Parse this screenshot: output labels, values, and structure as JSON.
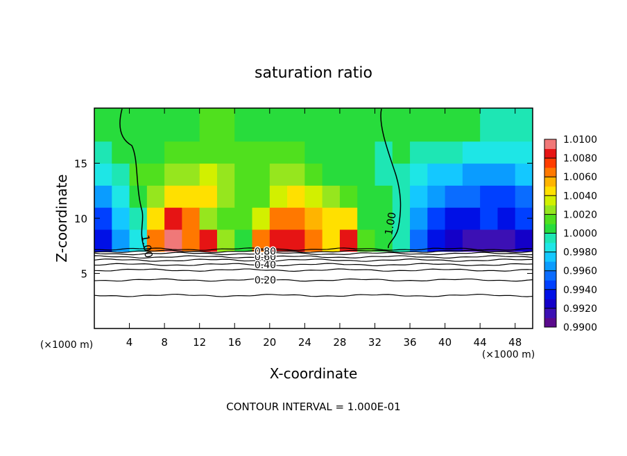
{
  "chart_data": {
    "type": "contour",
    "title": "saturation ratio",
    "x_label": "X-coordinate",
    "y_label": "Z-coordinate",
    "x_unit": "(×1000 m)",
    "y_unit": "(×1000 m)",
    "footer": "CONTOUR INTERVAL = 1.000E-01",
    "xlim": [
      0,
      50
    ],
    "ylim": [
      0,
      20
    ],
    "xticks": [
      4,
      8,
      12,
      16,
      20,
      24,
      28,
      32,
      36,
      40,
      44,
      48
    ],
    "yticks": [
      5,
      10,
      15
    ],
    "x": [
      1,
      3,
      5,
      7,
      9,
      11,
      13,
      15,
      17,
      19,
      21,
      23,
      25,
      27,
      29,
      31,
      33,
      35,
      37,
      39,
      41,
      43,
      45,
      47,
      49
    ],
    "y": [
      8,
      10,
      12,
      14,
      16,
      18
    ],
    "z": [
      [
        0.993,
        0.996,
        0.998,
        1.006,
        1.01,
        1.006,
        1.008,
        1.002,
        1.0,
        1.006,
        1.008,
        1.008,
        1.006,
        1.004,
        1.008,
        1.001,
        1.0,
        0.999,
        0.995,
        0.993,
        0.992,
        0.991,
        0.991,
        0.991,
        0.992
      ],
      [
        0.994,
        0.997,
        0.999,
        1.004,
        1.008,
        1.006,
        1.002,
        1.001,
        1.001,
        1.003,
        1.006,
        1.006,
        1.005,
        1.004,
        1.004,
        1.0,
        1.0,
        0.999,
        0.996,
        0.994,
        0.993,
        0.993,
        0.994,
        0.993,
        0.994
      ],
      [
        0.996,
        0.998,
        1.0,
        1.002,
        1.004,
        1.004,
        1.004,
        1.002,
        1.001,
        1.001,
        1.003,
        1.004,
        1.003,
        1.002,
        1.001,
        1.0,
        1.0,
        0.999,
        0.997,
        0.996,
        0.995,
        0.995,
        0.994,
        0.994,
        0.995
      ],
      [
        0.998,
        0.999,
        1.001,
        1.001,
        1.002,
        1.002,
        1.003,
        1.002,
        1.001,
        1.001,
        1.002,
        1.002,
        1.001,
        1.0,
        1.0,
        1.0,
        0.999,
        0.999,
        0.998,
        0.997,
        0.997,
        0.996,
        0.996,
        0.996,
        0.997
      ],
      [
        0.999,
        1.0,
        1.0,
        1.0,
        1.001,
        1.001,
        1.001,
        1.001,
        1.001,
        1.001,
        1.001,
        1.001,
        1.0,
        1.0,
        1.0,
        1.0,
        0.999,
        1.0,
        0.999,
        0.999,
        0.999,
        0.998,
        0.998,
        0.998,
        0.998
      ],
      [
        1.0,
        1.0,
        1.0,
        1.0,
        1.0,
        1.0,
        1.001,
        1.001,
        1.0,
        1.0,
        1.0,
        1.0,
        1.0,
        1.0,
        1.0,
        1.0,
        1.0,
        1.0,
        1.0,
        1.0,
        1.0,
        1.0,
        0.999,
        0.999,
        0.999
      ]
    ],
    "colorbar": {
      "lim": [
        0.99,
        1.01
      ],
      "ticks": [
        {
          "value": 0.99,
          "label": "0.9900"
        },
        {
          "value": 0.992,
          "label": "0.9920"
        },
        {
          "value": 0.994,
          "label": "0.9940"
        },
        {
          "value": 0.996,
          "label": "0.9960"
        },
        {
          "value": 0.998,
          "label": "0.9980"
        },
        {
          "value": 1.0,
          "label": "1.0000"
        },
        {
          "value": 1.002,
          "label": "1.0020"
        },
        {
          "value": 1.004,
          "label": "1.0040"
        },
        {
          "value": 1.006,
          "label": "1.0060"
        },
        {
          "value": 1.008,
          "label": "1.0080"
        },
        {
          "value": 1.01,
          "label": "1.0100"
        }
      ],
      "colors": [
        "#5a0a8c",
        "#3c10b4",
        "#1400c8",
        "#0010e6",
        "#0040ff",
        "#0a6cff",
        "#0a9cff",
        "#14c8ff",
        "#1ee6e6",
        "#1ee6b4",
        "#28dc3c",
        "#50e01e",
        "#96e61e",
        "#d2f000",
        "#ffe000",
        "#ffb400",
        "#ff7800",
        "#ff3c00",
        "#e61414",
        "#f07878"
      ]
    },
    "contours": [
      {
        "value": 0.1,
        "z": 3.0
      },
      {
        "value": 0.2,
        "label": "0.20",
        "z": 4.4
      },
      {
        "value": 0.3,
        "z": 5.3
      },
      {
        "value": 0.4,
        "label": "0.40",
        "z": 5.8
      },
      {
        "value": 0.5,
        "z": 6.2
      },
      {
        "value": 0.6,
        "label": "0.60",
        "z": 6.5
      },
      {
        "value": 0.7,
        "z": 6.8
      },
      {
        "value": 0.8,
        "label": "0.80",
        "z": 7.0
      },
      {
        "value": 0.9,
        "z": 7.2
      }
    ],
    "unity_contour_label": "1.00"
  }
}
